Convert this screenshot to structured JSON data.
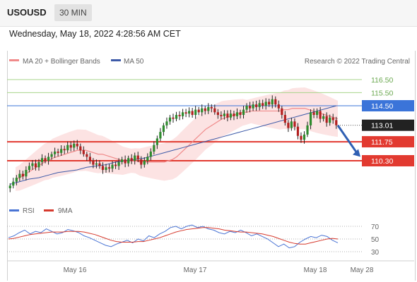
{
  "header": {
    "symbol": "USOUSD",
    "period": "30 MIN"
  },
  "datetime": "Wednesday, May 18, 2022 4:28:56 AM CET",
  "colors": {
    "ma20": "#f08a8a",
    "ma50": "#3d5aa8",
    "bollinger_fill": "#fbd9d9",
    "green_level": "#a8d58a",
    "blue_level": "#3b74d9",
    "red_level": "#e23a30",
    "current": "#222222",
    "up_candle": "#2e8b2e",
    "down_candle": "#b32020",
    "rsi": "#4a74d4",
    "rsi_ma": "#d63a2e",
    "arrow": "#2f5fb3"
  },
  "legend": {
    "ma20_label": "MA 20 + Bollinger Bands",
    "ma50_label": "MA 50",
    "credit": "Research © 2022 Trading Central"
  },
  "rsi_legend": {
    "rsi_label": "RSI",
    "ma_label": "9MA"
  },
  "chart_data": [
    {
      "type": "candlestick",
      "instrument": "USOUSD",
      "interval": "30 MIN",
      "ylim": [
        107.5,
        117.3
      ],
      "x_ticks": [
        "May 16",
        "May 17",
        "May 18",
        "May 28"
      ],
      "levels": [
        {
          "label": "116.50",
          "value": 116.5,
          "kind": "resistance",
          "color": "green"
        },
        {
          "label": "115.50",
          "value": 115.5,
          "kind": "resistance",
          "color": "green"
        },
        {
          "label": "114.50",
          "value": 114.5,
          "kind": "pivot",
          "color": "blue"
        },
        {
          "label": "113.01",
          "value": 113.01,
          "kind": "last_price",
          "color": "black"
        },
        {
          "label": "111.75",
          "value": 111.75,
          "kind": "support",
          "color": "red"
        },
        {
          "label": "110.30",
          "value": 110.3,
          "kind": "support",
          "color": "red"
        }
      ],
      "close_series": [
        108.4,
        108.7,
        109.0,
        109.3,
        109.1,
        109.6,
        109.9,
        110.1,
        109.8,
        110.2,
        110.5,
        110.3,
        110.6,
        110.8,
        111.0,
        110.9,
        111.2,
        111.1,
        111.5,
        111.3,
        111.6,
        111.4,
        111.1,
        110.8,
        110.6,
        110.3,
        110.0,
        110.1,
        109.9,
        109.6,
        109.8,
        109.7,
        110.0,
        109.9,
        110.2,
        110.4,
        110.1,
        110.5,
        110.3,
        110.7,
        110.4,
        110.0,
        110.3,
        110.6,
        111.0,
        111.5,
        112.0,
        112.5,
        113.0,
        113.3,
        113.6,
        113.5,
        113.8,
        113.7,
        114.0,
        113.9,
        114.1,
        113.8,
        114.2,
        114.0,
        114.3,
        114.1,
        114.4,
        114.3,
        114.0,
        113.8,
        113.7,
        113.9,
        113.6,
        113.9,
        113.7,
        114.0,
        113.8,
        114.2,
        114.5,
        114.3,
        114.6,
        114.4,
        114.7,
        114.5,
        114.8,
        114.6,
        115.0,
        114.6,
        114.3,
        113.8,
        113.2,
        112.8,
        113.3,
        112.9,
        112.2,
        111.9,
        112.3,
        113.0,
        114.0,
        113.8,
        114.1,
        113.5,
        113.7,
        113.2,
        113.6,
        113.4,
        113.01
      ],
      "ma20_series": [
        108.9,
        109.0,
        109.2,
        109.4,
        109.6,
        109.8,
        110.0,
        110.2,
        110.3,
        110.5,
        110.6,
        110.7,
        110.8,
        110.9,
        111.0,
        111.1,
        111.1,
        111.1,
        111.0,
        110.9,
        110.8,
        110.8,
        110.7,
        110.6,
        110.5,
        110.4,
        110.3,
        110.3,
        110.3,
        110.3,
        110.2,
        110.2,
        110.2,
        110.2,
        110.2,
        110.2,
        110.2,
        110.3,
        110.4,
        110.6,
        110.9,
        111.2,
        111.5,
        111.8,
        112.1,
        112.4,
        112.7,
        112.9,
        113.1,
        113.3,
        113.5,
        113.6,
        113.7,
        113.8,
        113.9,
        114.0,
        114.0,
        114.1,
        114.1,
        114.1,
        114.1,
        114.1,
        114.1,
        114.1,
        114.1,
        114.2,
        114.2,
        114.3,
        114.3,
        114.3,
        114.3,
        114.2,
        114.1,
        114.0,
        113.9,
        113.8,
        113.7,
        113.6,
        113.5
      ],
      "ma50_series": [
        108.5,
        108.7,
        108.9,
        109.0,
        109.2,
        109.4,
        109.5,
        109.6,
        109.8,
        109.9,
        110.0,
        110.2,
        110.3,
        110.4,
        110.5,
        110.7,
        110.9,
        111.1,
        111.3,
        111.5,
        111.7,
        111.9,
        112.1,
        112.3,
        112.5,
        112.7,
        112.9,
        113.1,
        113.3,
        113.5,
        113.7,
        113.9,
        114.1,
        114.3,
        114.5
      ]
    },
    {
      "type": "line",
      "indicator": "RSI",
      "y_ticks": [
        "70",
        "50",
        "30"
      ],
      "ylim": [
        20,
        80
      ],
      "series": [
        {
          "name": "RSI",
          "values": [
            52,
            55,
            60,
            64,
            58,
            62,
            60,
            66,
            62,
            58,
            60,
            65,
            63,
            60,
            55,
            52,
            48,
            44,
            40,
            38,
            42,
            45,
            48,
            44,
            50,
            47,
            55,
            52,
            58,
            62,
            68,
            70,
            66,
            70,
            72,
            68,
            70,
            66,
            64,
            60,
            58,
            62,
            60,
            64,
            60,
            55,
            58,
            54,
            50,
            44,
            38,
            42,
            36,
            38,
            45,
            50,
            54,
            52,
            56,
            54,
            48,
            44
          ]
        },
        {
          "name": "9MA",
          "values": [
            50,
            51,
            53,
            55,
            57,
            58,
            59,
            60,
            61,
            61,
            61,
            62,
            62,
            62,
            61,
            59,
            57,
            54,
            51,
            48,
            46,
            45,
            45,
            45,
            46,
            46,
            48,
            50,
            52,
            55,
            58,
            61,
            63,
            65,
            66,
            67,
            68,
            68,
            67,
            66,
            64,
            63,
            62,
            61,
            61,
            60,
            59,
            58,
            56,
            54,
            51,
            48,
            45,
            43,
            42,
            42,
            44,
            46,
            48,
            50,
            51,
            50
          ]
        }
      ]
    }
  ]
}
